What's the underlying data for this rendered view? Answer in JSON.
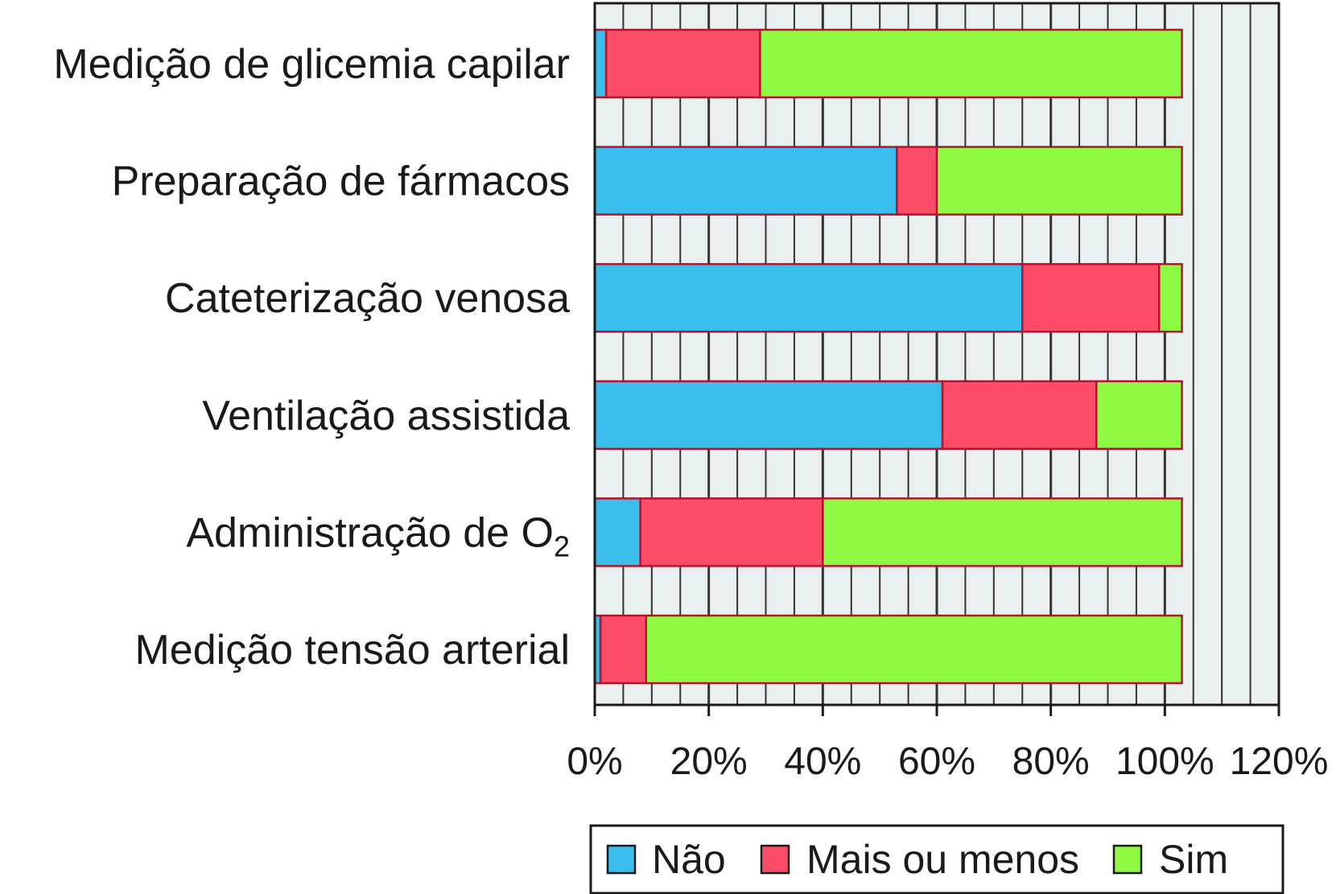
{
  "chart_data": {
    "type": "bar",
    "orientation": "horizontal",
    "stacked": true,
    "title": "",
    "xlabel": "",
    "ylabel": "",
    "xlim": [
      0,
      120
    ],
    "x_ticks": [
      "0%",
      "20%",
      "40%",
      "60%",
      "80%",
      "100%",
      "120%"
    ],
    "grid": "vertical lines",
    "legend_position": "bottom",
    "categories": [
      "Medição de glicemia capilar",
      "Preparação de fármacos",
      "Cateterização venosa",
      "Ventilação assistida",
      "Administração de O",
      "Medição tensão arterial"
    ],
    "category_subscripts": [
      "",
      "",
      "",
      "",
      "2",
      ""
    ],
    "series": [
      {
        "name": "Não",
        "color": "#3bbeec",
        "values": [
          2,
          53,
          75,
          61,
          8,
          1
        ]
      },
      {
        "name": "Mais ou menos",
        "color": "#fd4c67",
        "values": [
          27,
          7,
          24,
          27,
          32,
          8
        ]
      },
      {
        "name": "Sim",
        "color": "#8ff944",
        "values": [
          74,
          43,
          4,
          15,
          63,
          94
        ]
      }
    ]
  }
}
